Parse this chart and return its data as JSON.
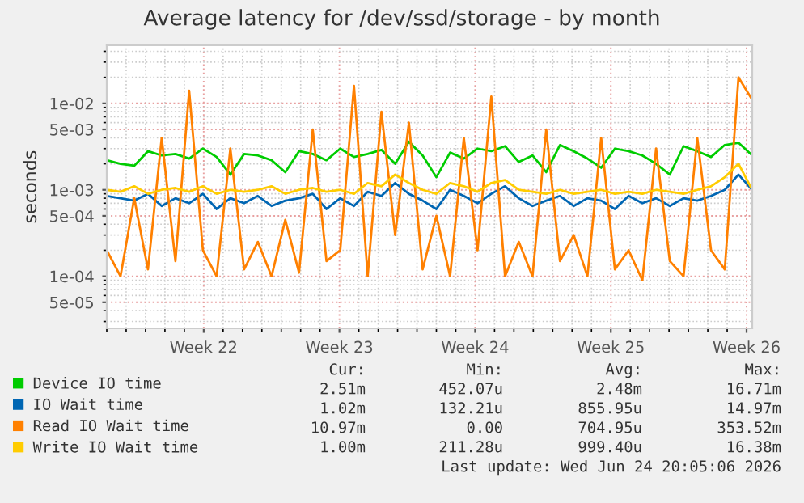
{
  "chart_data": {
    "type": "line",
    "title": "Average latency for /dev/ssd/storage - by month",
    "ylabel": "seconds",
    "x": [
      "2026-05-20T00:00",
      "2026-05-20T17:00",
      "2026-05-21T10:00",
      "2026-05-22T03:00",
      "2026-05-22T20:00",
      "2026-05-23T13:00",
      "2026-05-24T06:00",
      "2026-05-24T23:00",
      "2026-05-25T16:00",
      "2026-05-26T09:00",
      "2026-05-27T02:00",
      "2026-05-27T19:00",
      "2026-05-28T12:00",
      "2026-05-29T05:00",
      "2026-05-29T22:00",
      "2026-05-30T15:00",
      "2026-05-31T08:00",
      "2026-06-01T01:00",
      "2026-06-01T18:00",
      "2026-06-02T11:00",
      "2026-06-03T04:00",
      "2026-06-03T21:00",
      "2026-06-04T14:00",
      "2026-06-05T07:00",
      "2026-06-06T00:00",
      "2026-06-06T17:00",
      "2026-06-07T10:00",
      "2026-06-08T03:00",
      "2026-06-08T20:00",
      "2026-06-09T13:00",
      "2026-06-10T06:00",
      "2026-06-10T23:00",
      "2026-06-11T16:00",
      "2026-06-12T09:00",
      "2026-06-13T02:00",
      "2026-06-13T19:00",
      "2026-06-14T12:00",
      "2026-06-15T05:00",
      "2026-06-15T22:00",
      "2026-06-16T15:00",
      "2026-06-17T08:00",
      "2026-06-18T01:00",
      "2026-06-18T18:00",
      "2026-06-19T11:00",
      "2026-06-20T04:00",
      "2026-06-20T21:00",
      "2026-06-21T14:00",
      "2026-06-22T07:00"
    ],
    "series": [
      {
        "name": "Device IO time",
        "color": "#00cc00",
        "values": [
          0.0022,
          0.002,
          0.0019,
          0.0028,
          0.0025,
          0.0026,
          0.0023,
          0.003,
          0.0024,
          0.0015,
          0.0026,
          0.0025,
          0.0022,
          0.0016,
          0.0028,
          0.0026,
          0.0022,
          0.003,
          0.0024,
          0.0026,
          0.0029,
          0.002,
          0.0036,
          0.0025,
          0.0014,
          0.0027,
          0.0023,
          0.003,
          0.0028,
          0.0032,
          0.0021,
          0.0025,
          0.0016,
          0.0033,
          0.0028,
          0.0023,
          0.0018,
          0.003,
          0.0028,
          0.0025,
          0.002,
          0.0015,
          0.0032,
          0.0028,
          0.0024,
          0.0033,
          0.0035,
          0.0025
        ]
      },
      {
        "name": "IO Wait time",
        "color": "#0066b3",
        "values": [
          0.00085,
          0.0008,
          0.00075,
          0.0009,
          0.00065,
          0.0008,
          0.0007,
          0.0009,
          0.0006,
          0.0008,
          0.0007,
          0.00085,
          0.00065,
          0.00075,
          0.0008,
          0.0009,
          0.0006,
          0.0008,
          0.00065,
          0.00095,
          0.00085,
          0.0012,
          0.0009,
          0.00075,
          0.0006,
          0.001,
          0.00085,
          0.0007,
          0.0009,
          0.0011,
          0.0008,
          0.00065,
          0.00075,
          0.00085,
          0.00065,
          0.0008,
          0.00075,
          0.0006,
          0.00085,
          0.0007,
          0.0008,
          0.00065,
          0.0008,
          0.00075,
          0.00085,
          0.001,
          0.0015,
          0.001
        ]
      },
      {
        "name": "Read IO Wait time",
        "color": "#ff8000",
        "values": [
          0.0002,
          0.0001,
          0.0008,
          0.00012,
          0.004,
          0.00015,
          0.014,
          0.0002,
          0.0001,
          0.003,
          0.00012,
          0.00025,
          0.0001,
          0.00045,
          0.00011,
          0.005,
          0.00015,
          0.0002,
          0.016,
          0.0001,
          0.008,
          0.0003,
          0.006,
          0.00012,
          0.0005,
          0.0001,
          0.004,
          0.0002,
          0.012,
          0.0001,
          0.00025,
          0.0001,
          0.005,
          0.00015,
          0.0003,
          0.0001,
          0.004,
          0.00012,
          0.0002,
          9e-05,
          0.003,
          0.00015,
          0.0001,
          0.004,
          0.0002,
          0.00012,
          0.02,
          0.011
        ]
      },
      {
        "name": "Write IO Wait time",
        "color": "#ffcc00",
        "values": [
          0.001,
          0.00095,
          0.0011,
          0.0009,
          0.001,
          0.00105,
          0.00095,
          0.0011,
          0.0009,
          0.001,
          0.00095,
          0.001,
          0.0011,
          0.0009,
          0.001,
          0.00105,
          0.00095,
          0.001,
          0.0009,
          0.0012,
          0.0011,
          0.0015,
          0.0012,
          0.001,
          0.0009,
          0.0012,
          0.0011,
          0.00095,
          0.0012,
          0.0013,
          0.001,
          0.00095,
          0.0009,
          0.001,
          0.0009,
          0.00095,
          0.001,
          0.0009,
          0.00095,
          0.0009,
          0.001,
          0.00095,
          0.0009,
          0.001,
          0.0011,
          0.0014,
          0.002,
          0.001
        ]
      }
    ],
    "log": "y",
    "ylim": [
      2.5e-05,
      0.047
    ],
    "yticks": [
      {
        "value": 5e-05,
        "label": "5e-05"
      },
      {
        "value": 0.0001,
        "label": "1e-04"
      },
      {
        "value": 0.0005,
        "label": "5e-04"
      },
      {
        "value": 0.001,
        "label": "1e-03"
      },
      {
        "value": 0.005,
        "label": "5e-03"
      },
      {
        "value": 0.01,
        "label": "1e-02"
      }
    ],
    "xlim": [
      "2026-05-20T00:00",
      "2026-06-22T07:00"
    ],
    "xticks": [
      {
        "value": "2026-05-25",
        "label": "Week 22"
      },
      {
        "value": "2026-06-01",
        "label": "Week 23"
      },
      {
        "value": "2026-06-08",
        "label": "Week 24"
      },
      {
        "value": "2026-06-15",
        "label": "Week 25"
      },
      {
        "value": "2026-06-22",
        "label": "Week 26"
      }
    ],
    "grid": true,
    "legend": "bottom",
    "annotations": [
      "Cur:",
      "Min:",
      "Avg:",
      "Max:",
      "2.51m",
      "452.07u",
      "2.48m",
      "16.71m",
      "1.02m",
      "132.21u",
      "855.95u",
      "14.97m",
      "10.97m",
      "0.00",
      "704.95u",
      "353.52m",
      "1.00m",
      "211.28u",
      "999.40u",
      "16.38m",
      "Last update: Wed Jun 24 20:05:06 2026"
    ]
  }
}
